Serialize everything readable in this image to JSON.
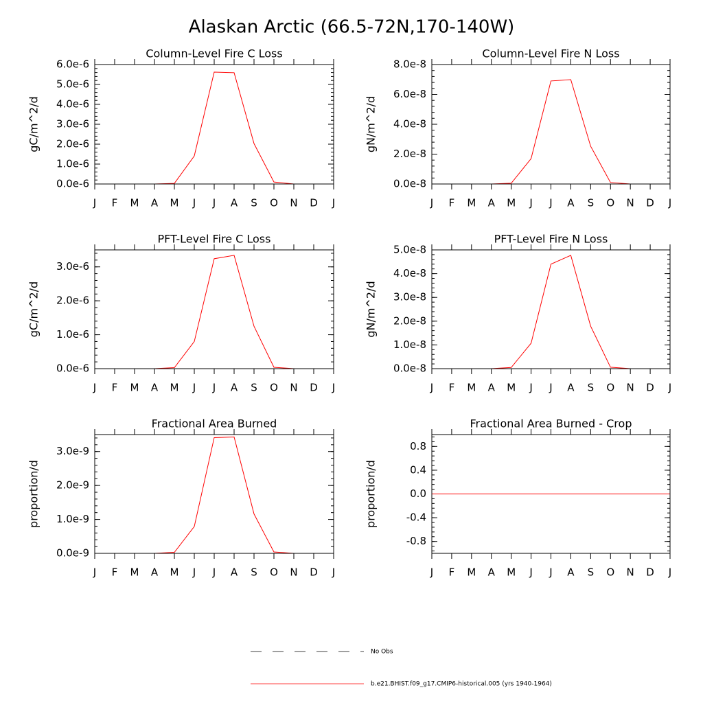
{
  "title": "Alaskan Arctic (66.5-72N,170-140W)",
  "legend": [
    {
      "name": "No Obs",
      "color": "#000000",
      "dash": "dashed"
    },
    {
      "name": "b.e21.BHIST.f09_g17.CMIP6-historical.005 (yrs 1940-1964)",
      "color": "#ff0000",
      "dash": "solid"
    }
  ],
  "chart_data": [
    {
      "type": "line",
      "title": "Column-Level Fire C Loss",
      "ylabel": "gC/m^2/d",
      "categories": [
        "J",
        "F",
        "M",
        "A",
        "M",
        "J",
        "J",
        "A",
        "S",
        "O",
        "N",
        "D",
        "J"
      ],
      "series": [
        {
          "color": "#ff0000",
          "values": [
            0,
            0,
            0,
            0,
            3e-08,
            1.41e-06,
            5.62e-06,
            5.59e-06,
            2.03e-06,
            1e-07,
            0,
            0,
            0
          ]
        }
      ],
      "ylim": [
        0,
        6e-06
      ],
      "yticks": [
        {
          "value": 0,
          "label": "0.0e-6"
        },
        {
          "value": 1e-06,
          "label": "1.0e-6"
        },
        {
          "value": 2e-06,
          "label": "2.0e-6"
        },
        {
          "value": 3e-06,
          "label": "3.0e-6"
        },
        {
          "value": 4e-06,
          "label": "4.0e-6"
        },
        {
          "value": 5e-06,
          "label": "5.0e-6"
        },
        {
          "value": 6e-06,
          "label": "6.0e-6"
        }
      ]
    },
    {
      "type": "line",
      "title": "Column-Level Fire N Loss",
      "ylabel": "gN/m^2/d",
      "categories": [
        "J",
        "F",
        "M",
        "A",
        "M",
        "J",
        "J",
        "A",
        "S",
        "O",
        "N",
        "D",
        "J"
      ],
      "series": [
        {
          "color": "#ff0000",
          "values": [
            0,
            0,
            0,
            0,
            5e-10,
            1.7e-08,
            6.9e-08,
            6.99e-08,
            2.53e-08,
            1e-09,
            0,
            0,
            0
          ]
        }
      ],
      "ylim": [
        0,
        8e-08
      ],
      "yticks": [
        {
          "value": 0,
          "label": "0.0e-8"
        },
        {
          "value": 2e-08,
          "label": "2.0e-8"
        },
        {
          "value": 4e-08,
          "label": "4.0e-8"
        },
        {
          "value": 6e-08,
          "label": "6.0e-8"
        },
        {
          "value": 8e-08,
          "label": "8.0e-8"
        }
      ]
    },
    {
      "type": "line",
      "title": "PFT-Level Fire C Loss",
      "ylabel": "gC/m^2/d",
      "categories": [
        "J",
        "F",
        "M",
        "A",
        "M",
        "J",
        "J",
        "A",
        "S",
        "O",
        "N",
        "D",
        "J"
      ],
      "series": [
        {
          "color": "#ff0000",
          "values": [
            0,
            0,
            0,
            0,
            3e-08,
            8e-07,
            3.24e-06,
            3.34e-06,
            1.25e-06,
            4e-08,
            0,
            0,
            0
          ]
        }
      ],
      "ylim": [
        0,
        3.5e-06
      ],
      "yticks": [
        {
          "value": 0,
          "label": "0.0e-6"
        },
        {
          "value": 1e-06,
          "label": "1.0e-6"
        },
        {
          "value": 2e-06,
          "label": "2.0e-6"
        },
        {
          "value": 3e-06,
          "label": "3.0e-6"
        }
      ]
    },
    {
      "type": "line",
      "title": "PFT-Level Fire N Loss",
      "ylabel": "gN/m^2/d",
      "categories": [
        "J",
        "F",
        "M",
        "A",
        "M",
        "J",
        "J",
        "A",
        "S",
        "O",
        "N",
        "D",
        "J"
      ],
      "series": [
        {
          "color": "#ff0000",
          "values": [
            0,
            0,
            0,
            0,
            5e-10,
            1.07e-08,
            4.4e-08,
            4.77e-08,
            1.79e-08,
            6e-10,
            0,
            0,
            0
          ]
        }
      ],
      "ylim": [
        0,
        5e-08
      ],
      "yticks": [
        {
          "value": 0,
          "label": "0.0e-8"
        },
        {
          "value": 1e-08,
          "label": "1.0e-8"
        },
        {
          "value": 2e-08,
          "label": "2.0e-8"
        },
        {
          "value": 3e-08,
          "label": "3.0e-8"
        },
        {
          "value": 4e-08,
          "label": "4.0e-8"
        },
        {
          "value": 5e-08,
          "label": "5.0e-8"
        }
      ]
    },
    {
      "type": "line",
      "title": "Fractional Area Burned",
      "ylabel": "proportion/d",
      "categories": [
        "J",
        "F",
        "M",
        "A",
        "M",
        "J",
        "J",
        "A",
        "S",
        "O",
        "N",
        "D",
        "J"
      ],
      "series": [
        {
          "color": "#ff0000",
          "values": [
            0,
            0,
            0,
            0,
            3e-11,
            7.9e-10,
            3.41e-09,
            3.43e-09,
            1.16e-09,
            4e-11,
            0,
            0,
            0
          ]
        }
      ],
      "ylim": [
        0,
        3.5e-09
      ],
      "yticks": [
        {
          "value": 0,
          "label": "0.0e-9"
        },
        {
          "value": 1e-09,
          "label": "1.0e-9"
        },
        {
          "value": 2e-09,
          "label": "2.0e-9"
        },
        {
          "value": 3e-09,
          "label": "3.0e-9"
        }
      ]
    },
    {
      "type": "line",
      "title": "Fractional Area Burned - Crop",
      "ylabel": "proportion/d",
      "categories": [
        "J",
        "F",
        "M",
        "A",
        "M",
        "J",
        "J",
        "A",
        "S",
        "O",
        "N",
        "D",
        "J"
      ],
      "series": [
        {
          "color": "#ff0000",
          "values": [
            0,
            0,
            0,
            0,
            0,
            0,
            0,
            0,
            0,
            0,
            0,
            0,
            0
          ]
        }
      ],
      "ylim": [
        -1,
        1
      ],
      "yticks": [
        -0.8,
        -0.4,
        {
          "value": 0,
          "label": "0.0"
        },
        0.4,
        0.8
      ]
    }
  ]
}
